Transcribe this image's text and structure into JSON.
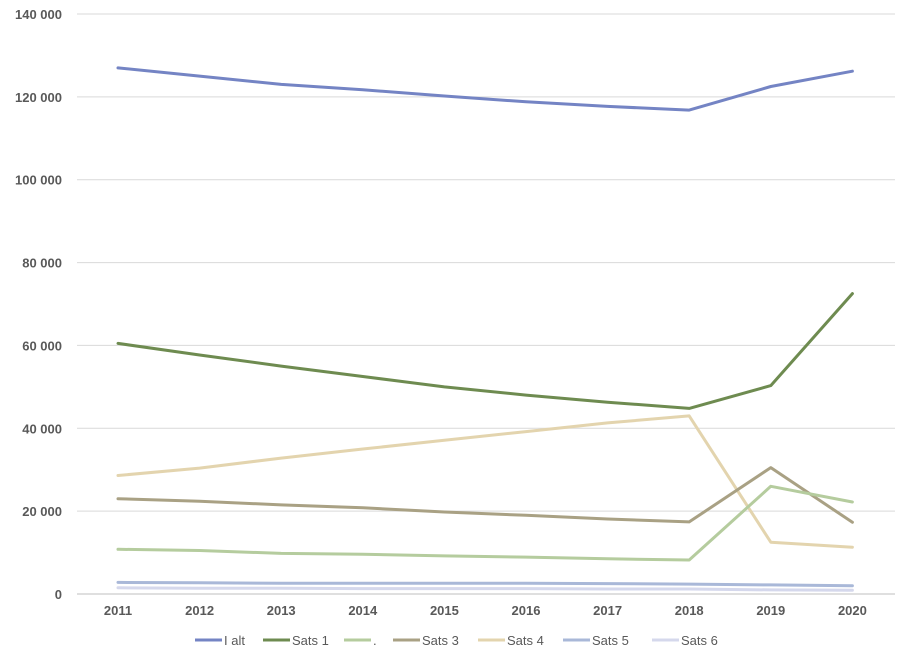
{
  "chart_data": {
    "type": "line",
    "title": "",
    "xlabel": "",
    "ylabel": "",
    "categories": [
      "2011",
      "2012",
      "2013",
      "2014",
      "2015",
      "2016",
      "2017",
      "2018",
      "2019",
      "2020"
    ],
    "ylim": [
      0,
      140000
    ],
    "yticks": [
      0,
      20000,
      40000,
      60000,
      80000,
      100000,
      120000,
      140000
    ],
    "ytick_labels": [
      "0",
      "20 000",
      "40 000",
      "60 000",
      "80 000",
      "100 000",
      "120 000",
      "140 000"
    ],
    "grid": true,
    "legend_position": "bottom",
    "series": [
      {
        "name": "I alt",
        "color": "#7484C4",
        "values": [
          127000,
          125000,
          123000,
          121700,
          120200,
          118800,
          117700,
          116800,
          122500,
          126200
        ]
      },
      {
        "name": "Sats 1",
        "color": "#6E8B50",
        "values": [
          60500,
          57700,
          55000,
          52500,
          50000,
          48000,
          46300,
          44800,
          50300,
          72500
        ]
      },
      {
        "name": ".",
        "color": "#B5CC9E",
        "values": [
          10800,
          10500,
          9800,
          9600,
          9200,
          8900,
          8500,
          8200,
          26000,
          22200
        ]
      },
      {
        "name": "Sats 3",
        "color": "#A9A184",
        "values": [
          23000,
          22400,
          21500,
          20800,
          19800,
          19000,
          18100,
          17400,
          30500,
          17300
        ]
      },
      {
        "name": "Sats 4",
        "color": "#E3D4AE",
        "values": [
          28600,
          30400,
          32800,
          35000,
          37100,
          39200,
          41300,
          43000,
          12500,
          11300
        ]
      },
      {
        "name": "Sats 5",
        "color": "#A9B8D8",
        "values": [
          2800,
          2700,
          2600,
          2600,
          2600,
          2600,
          2500,
          2400,
          2200,
          2000
        ]
      },
      {
        "name": "Sats 6",
        "color": "#D5D8EC",
        "values": [
          1500,
          1400,
          1400,
          1300,
          1300,
          1300,
          1200,
          1200,
          1000,
          900
        ]
      }
    ]
  }
}
